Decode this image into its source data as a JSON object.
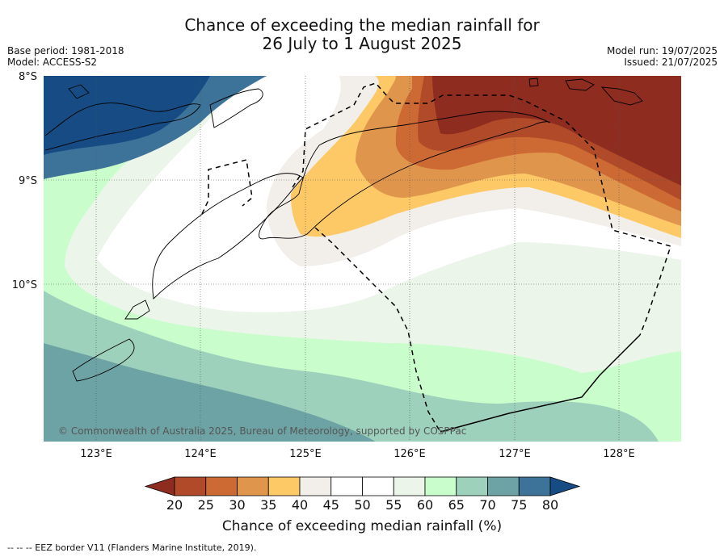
{
  "title": {
    "line1": "Chance of exceeding the median rainfall for",
    "line2": "26 July to 1 August 2025"
  },
  "meta": {
    "base_period": "Base period: 1981-2018",
    "model": "Model: ACCESS-S2",
    "model_run": "Model run: 19/07/2025",
    "issued": "Issued: 21/07/2025"
  },
  "map": {
    "lat_labels": [
      "8°S",
      "9°S",
      "10°S"
    ],
    "lon_labels": [
      "123°E",
      "124°E",
      "125°E",
      "126°E",
      "127°E",
      "128°E"
    ],
    "copyright": "© Commonwealth of Australia 2025, Bureau of Meteorology, supported by COSPPac"
  },
  "colorbar": {
    "label": "Chance of exceeding median rainfall (%)",
    "ticks": [
      "20",
      "25",
      "30",
      "35",
      "40",
      "45",
      "50",
      "55",
      "60",
      "65",
      "70",
      "75",
      "80"
    ],
    "colors": [
      "#8e2c1f",
      "#b14a28",
      "#cd6a34",
      "#e0954c",
      "#fdc967",
      "#f2eee9",
      "#ffffff",
      "#ffffff",
      "#ecf5ea",
      "#cafdcc",
      "#9dd1bb",
      "#6ea3a6",
      "#3d7399",
      "#164c83"
    ]
  },
  "footer": {
    "eez_note": "-- -- -- EEZ border V11 (Flanders Marine Institute, 2019)."
  }
}
